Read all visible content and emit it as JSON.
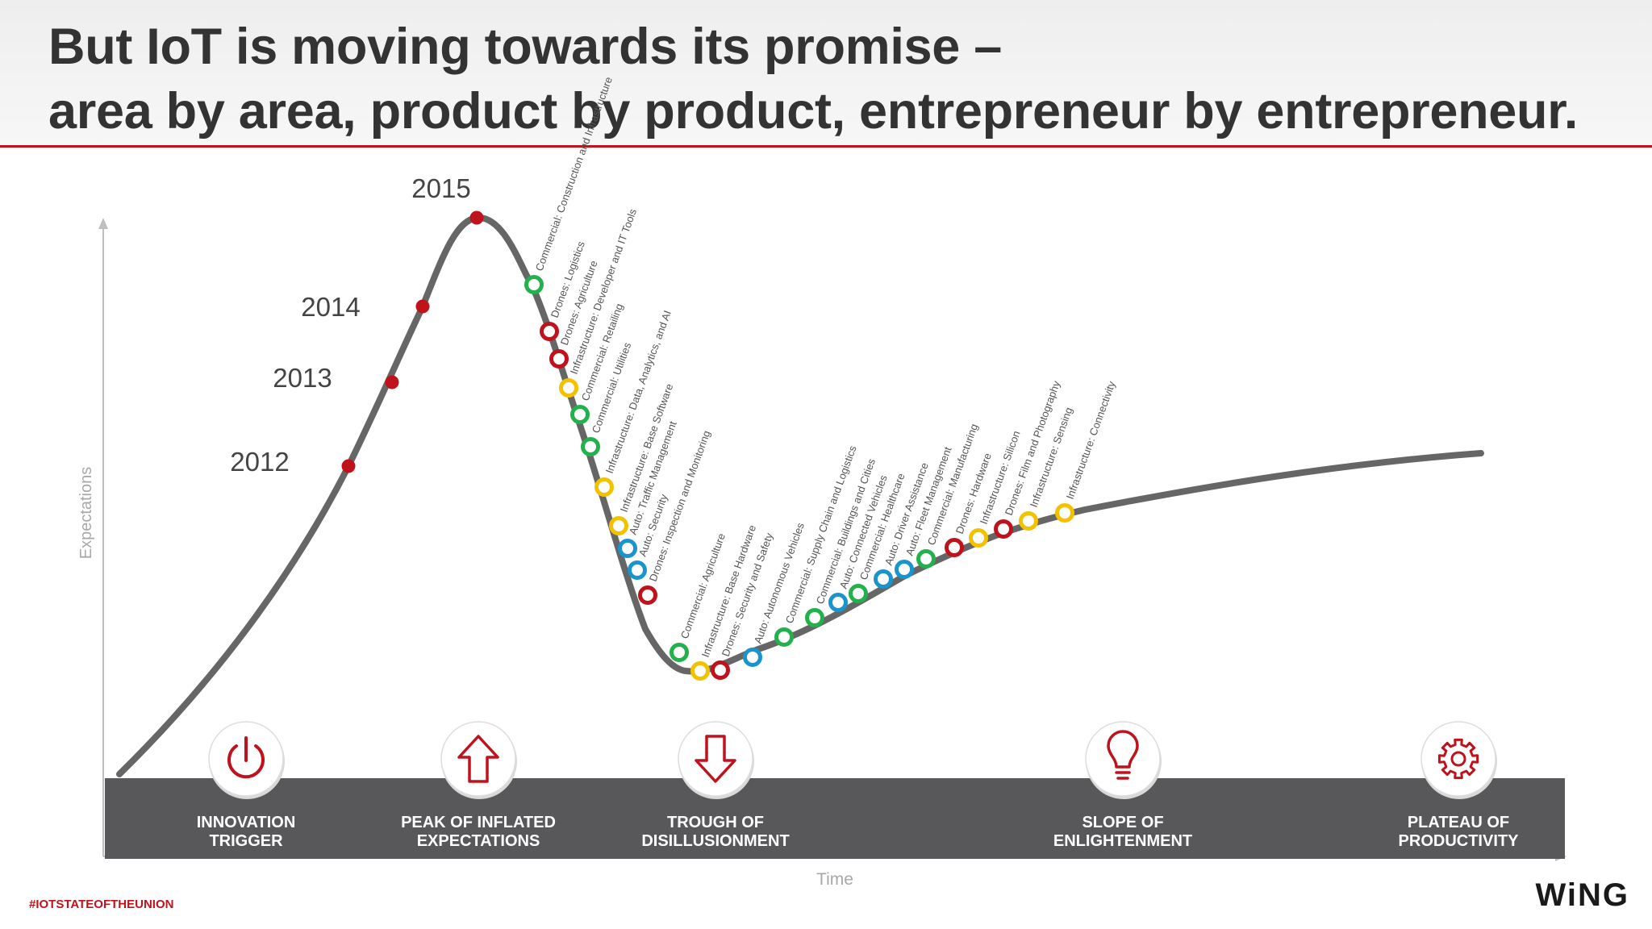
{
  "slide": {
    "title_line1": "But IoT is moving towards its promise –",
    "title_line2": "area by area, product by product, entrepreneur by entrepreneur.",
    "hashtag": "#IOTSTATEOFTHEUNION",
    "logo_text": "WiNG",
    "colors": {
      "accent_red": "#c0121c",
      "curve": "#666666",
      "band": "#58585a",
      "green": "#22b14c",
      "yellow": "#f2c200",
      "blue": "#1a94cc"
    }
  },
  "chart_data": {
    "type": "hype-cycle",
    "y_axis_label": "Expectations",
    "x_axis_label": "Time",
    "phases": [
      {
        "line1": "INNOVATION",
        "line2": "TRIGGER",
        "icon": "power-icon"
      },
      {
        "line1": "PEAK OF INFLATED",
        "line2": "EXPECTATIONS",
        "icon": "arrow-up-icon"
      },
      {
        "line1": "TROUGH OF",
        "line2": "DISILLUSIONMENT",
        "icon": "arrow-down-icon"
      },
      {
        "line1": "SLOPE OF",
        "line2": "ENLIGHTENMENT",
        "icon": "lightbulb-icon"
      },
      {
        "line1": "PLATEAU OF",
        "line2": "PRODUCTIVITY",
        "icon": "gear-icon"
      }
    ],
    "year_markers": [
      "2012",
      "2013",
      "2014",
      "2015"
    ],
    "items": [
      {
        "label": "Commercial: Construction and Infrastructure",
        "color": "green"
      },
      {
        "label": "Drones: Logistics",
        "color": "red"
      },
      {
        "label": "Drones: Agriculture",
        "color": "red"
      },
      {
        "label": "Infrastructure: Developer and IT Tools",
        "color": "yellow"
      },
      {
        "label": "Commercial: Retailing",
        "color": "green"
      },
      {
        "label": "Commercial: Utilities",
        "color": "green"
      },
      {
        "label": "Infrastructure: Data, Analytics, and AI",
        "color": "yellow"
      },
      {
        "label": "Infrastructure: Base Software",
        "color": "yellow"
      },
      {
        "label": "Auto: Traffic Management",
        "color": "blue"
      },
      {
        "label": "Auto: Security",
        "color": "blue"
      },
      {
        "label": "Drones: Inspection and Monitoring",
        "color": "red"
      },
      {
        "label": "Commercial: Agriculture",
        "color": "green"
      },
      {
        "label": "Infrastructure: Base Hardware",
        "color": "yellow"
      },
      {
        "label": "Drones: Security and Safety",
        "color": "red"
      },
      {
        "label": "Auto: Autonomous Vehicles",
        "color": "blue"
      },
      {
        "label": "Commercial: Supply Chain and Logistics",
        "color": "green"
      },
      {
        "label": "Commercial: Buildings and Cities",
        "color": "green"
      },
      {
        "label": "Auto: Connected Vehicles",
        "color": "blue"
      },
      {
        "label": "Commercial: Healthcare",
        "color": "green"
      },
      {
        "label": "Auto: Driver Assistance",
        "color": "blue"
      },
      {
        "label": "Auto: Fleet Management",
        "color": "blue"
      },
      {
        "label": "Commercial: Manufacturing",
        "color": "green"
      },
      {
        "label": "Drones: Hardware",
        "color": "red"
      },
      {
        "label": "Infrastructure: Silicon",
        "color": "yellow"
      },
      {
        "label": "Drones: Film and Photography",
        "color": "red"
      },
      {
        "label": "Infrastructure: Sensing",
        "color": "yellow"
      },
      {
        "label": "Infrastructure: Connectivity",
        "color": "yellow"
      }
    ]
  }
}
